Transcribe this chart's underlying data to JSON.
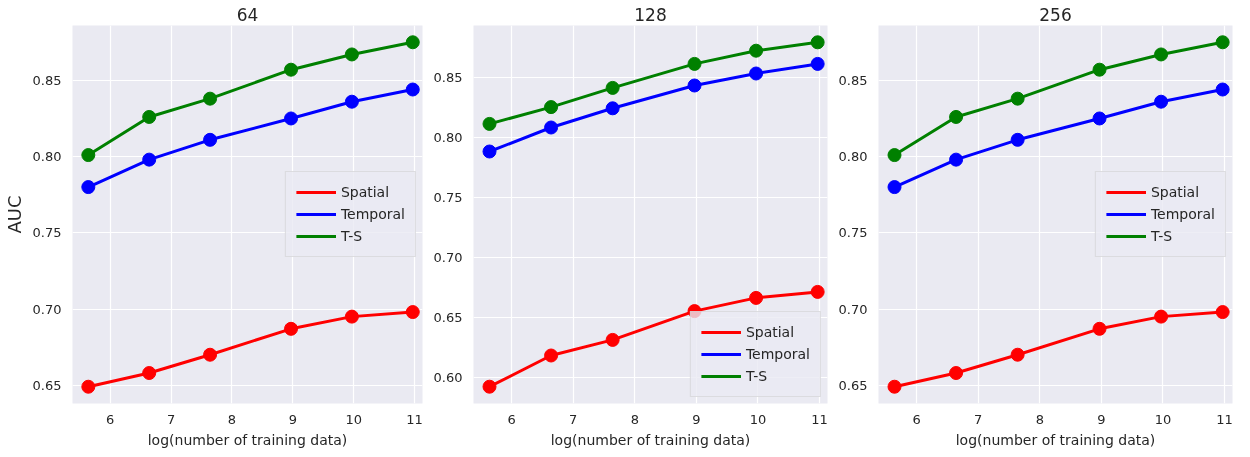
{
  "chart_data": [
    {
      "type": "line",
      "title": "64",
      "xlabel": "log(number of training data)",
      "ylabel": "AUC",
      "x": [
        5.64,
        6.64,
        7.64,
        8.97,
        9.97,
        10.97
      ],
      "xlim": [
        5.38,
        11.13
      ],
      "ylim": [
        0.638,
        0.886
      ],
      "xticks": [
        6,
        7,
        8,
        9,
        10,
        11
      ],
      "yticks": [
        0.65,
        {
          "value": 0.7,
          "label": "0.70"
        },
        0.75,
        {
          "value": 0.8,
          "label": "0.80"
        },
        0.85
      ],
      "grid": true,
      "legend": "right",
      "marker": "circle",
      "line_style": "solid",
      "series": [
        {
          "name": "Spatial",
          "color": "#ff0000",
          "values": [
            0.649,
            0.658,
            0.67,
            0.687,
            0.695,
            0.698
          ]
        },
        {
          "name": "Temporal",
          "color": "#0000ff",
          "values": [
            0.78,
            0.798,
            0.811,
            0.825,
            0.836,
            0.844
          ]
        },
        {
          "name": "T-S",
          "color": "#008000",
          "values": [
            0.801,
            0.826,
            0.838,
            0.857,
            0.867,
            0.875
          ]
        }
      ]
    },
    {
      "type": "line",
      "title": "128",
      "xlabel": "log(number of training data)",
      "x": [
        5.64,
        6.64,
        7.64,
        8.97,
        9.97,
        10.97
      ],
      "xlim": [
        5.38,
        11.13
      ],
      "ylim": [
        0.578,
        0.893
      ],
      "xticks": [
        6,
        7,
        8,
        9,
        10,
        11
      ],
      "yticks": [
        {
          "value": 0.6,
          "label": "0.60"
        },
        0.65,
        {
          "value": 0.7,
          "label": "0.70"
        },
        0.75,
        {
          "value": 0.8,
          "label": "0.80"
        },
        0.85
      ],
      "grid": true,
      "legend": "bottom right",
      "marker": "circle",
      "line_style": "solid",
      "series": [
        {
          "name": "Spatial",
          "color": "#ff0000",
          "values": [
            0.592,
            0.618,
            0.631,
            0.655,
            0.666,
            0.671
          ]
        },
        {
          "name": "Temporal",
          "color": "#0000ff",
          "values": [
            0.788,
            0.808,
            0.824,
            0.843,
            0.853,
            0.861
          ]
        },
        {
          "name": "T-S",
          "color": "#008000",
          "values": [
            0.811,
            0.825,
            0.841,
            0.861,
            0.872,
            0.879
          ]
        }
      ]
    },
    {
      "type": "line",
      "title": "256",
      "xlabel": "log(number of training data)",
      "x": [
        5.64,
        6.64,
        7.64,
        8.97,
        9.97,
        10.97
      ],
      "xlim": [
        5.38,
        11.13
      ],
      "ylim": [
        0.638,
        0.886
      ],
      "xticks": [
        6,
        7,
        8,
        9,
        10,
        11
      ],
      "yticks": [
        0.65,
        {
          "value": 0.7,
          "label": "0.70"
        },
        0.75,
        {
          "value": 0.8,
          "label": "0.80"
        },
        0.85
      ],
      "grid": true,
      "legend": "right",
      "marker": "circle",
      "line_style": "solid",
      "series": [
        {
          "name": "Spatial",
          "color": "#ff0000",
          "values": [
            0.649,
            0.658,
            0.67,
            0.687,
            0.695,
            0.698
          ]
        },
        {
          "name": "Temporal",
          "color": "#0000ff",
          "values": [
            0.78,
            0.798,
            0.811,
            0.825,
            0.836,
            0.844
          ]
        },
        {
          "name": "T-S",
          "color": "#008000",
          "values": [
            0.801,
            0.826,
            0.838,
            0.857,
            0.867,
            0.875
          ]
        }
      ]
    }
  ]
}
